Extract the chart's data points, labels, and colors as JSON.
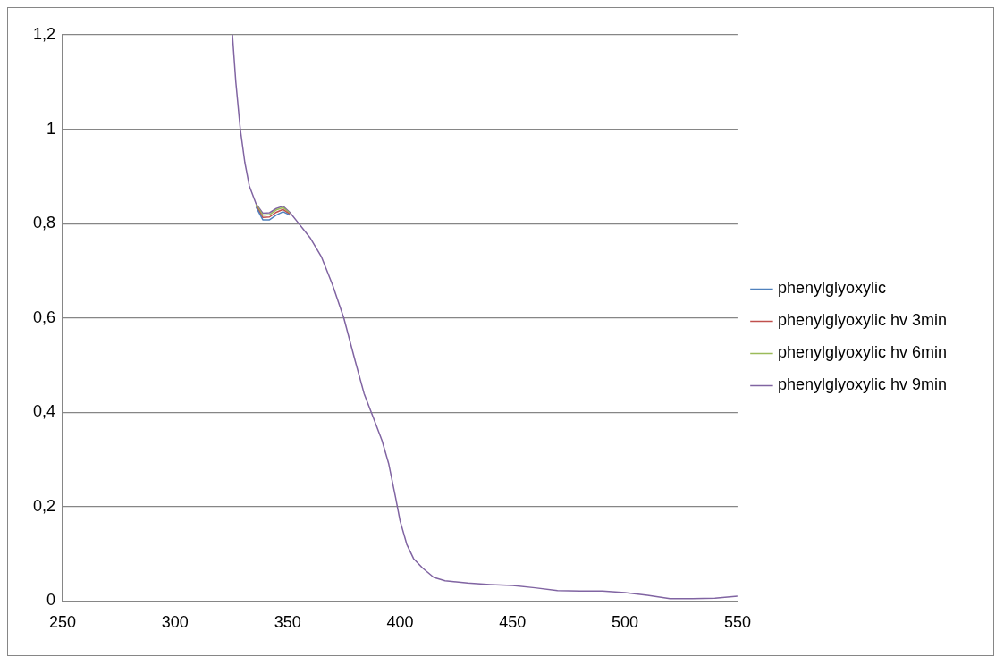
{
  "chart_data": {
    "type": "line",
    "x": [
      325.5,
      327,
      329,
      331,
      333,
      336,
      339,
      342,
      345,
      348,
      351,
      355,
      360,
      365,
      370,
      375,
      380,
      384,
      388,
      392,
      395,
      398,
      400,
      403,
      406,
      410,
      415,
      420,
      430,
      440,
      450,
      460,
      470,
      480,
      490,
      500,
      510,
      520,
      530,
      540,
      550
    ],
    "series": [
      {
        "name": "phenylglyoxylic",
        "color": "#4f81bd",
        "values": [
          null,
          null,
          null,
          null,
          null,
          0.835,
          0.808,
          0.808,
          0.818,
          0.825,
          0.818,
          null,
          null,
          null,
          null,
          null,
          null,
          null,
          null,
          null,
          null,
          null,
          null,
          null,
          null,
          null,
          null,
          null,
          null,
          null,
          null,
          null,
          null,
          null,
          null,
          null,
          null,
          null,
          null,
          null,
          null
        ]
      },
      {
        "name": "phenylglyoxylic hv 3min",
        "color": "#c0504d",
        "values": [
          null,
          null,
          null,
          null,
          null,
          0.838,
          0.813,
          0.814,
          0.824,
          0.83,
          0.82,
          null,
          null,
          null,
          null,
          null,
          null,
          null,
          null,
          null,
          null,
          null,
          null,
          null,
          null,
          null,
          null,
          null,
          null,
          null,
          null,
          null,
          null,
          null,
          null,
          null,
          null,
          null,
          null,
          null,
          null
        ]
      },
      {
        "name": "phenylglyoxylic hv 6min",
        "color": "#9bbb59",
        "values": [
          null,
          null,
          null,
          null,
          null,
          0.84,
          0.818,
          0.819,
          0.829,
          0.834,
          0.822,
          null,
          null,
          null,
          null,
          null,
          null,
          null,
          null,
          null,
          null,
          null,
          null,
          null,
          null,
          null,
          null,
          null,
          null,
          null,
          null,
          null,
          null,
          null,
          null,
          null,
          null,
          null,
          null,
          null,
          null
        ]
      },
      {
        "name": "phenylglyoxylic hv 9min",
        "color": "#8064a2",
        "values": [
          1.2,
          1.1,
          1.0,
          0.93,
          0.88,
          0.842,
          0.822,
          0.823,
          0.832,
          0.837,
          0.824,
          0.8,
          0.77,
          0.73,
          0.67,
          0.6,
          0.51,
          0.44,
          0.39,
          0.34,
          0.29,
          0.22,
          0.17,
          0.12,
          0.09,
          0.07,
          0.05,
          0.043,
          0.038,
          0.035,
          0.033,
          0.028,
          0.022,
          0.021,
          0.021,
          0.018,
          0.012,
          0.005,
          0.005,
          0.006,
          0.01
        ]
      }
    ],
    "xlim": [
      250,
      550
    ],
    "xticks": [
      250,
      300,
      350,
      400,
      450,
      500,
      550
    ],
    "ylim": [
      0,
      1.2
    ],
    "yticks": [
      0,
      {
        "value": 0.2,
        "label": "0,2"
      },
      {
        "value": 0.4,
        "label": "0,4"
      },
      {
        "value": 0.6,
        "label": "0,6"
      },
      {
        "value": 0.8,
        "label": "0,8"
      },
      1,
      {
        "value": 1.2,
        "label": "1,2"
      }
    ],
    "grid": "y",
    "legend": "right",
    "marker": "none",
    "line_style": "solid"
  }
}
